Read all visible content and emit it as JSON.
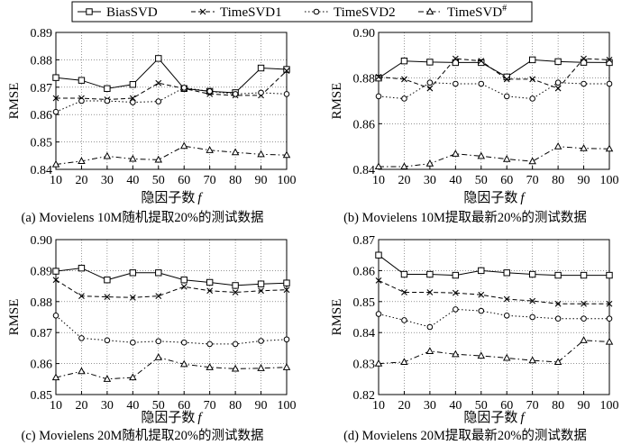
{
  "legend": {
    "entries": [
      {
        "series": "BiasSVD",
        "marker": "square",
        "dash": "solid"
      },
      {
        "series": "TimeSVD1",
        "marker": "x",
        "dash": "dash"
      },
      {
        "series": "TimeSVD2",
        "marker": "circle",
        "dash": "dot"
      },
      {
        "series": "TimeSVD#",
        "marker": "triangle",
        "dash": "dashdot"
      }
    ]
  },
  "chart_data": [
    {
      "type": "line",
      "caption": "(a) Movielens 10M随机提取20%的测试数据",
      "xlabel": "隐因子数f",
      "ylabel": "RMSE",
      "x": [
        10,
        20,
        30,
        40,
        50,
        60,
        70,
        80,
        90,
        100
      ],
      "xticks": [
        "10",
        "20",
        "30",
        "40",
        "50",
        "60",
        "70",
        "80",
        "90",
        "100"
      ],
      "ylim": [
        0.84,
        0.89
      ],
      "yticks": [
        0.84,
        0.85,
        0.86,
        0.87,
        0.88,
        0.89
      ],
      "ytick_labels": [
        "0.84",
        "0.85",
        "0.86",
        "0.87",
        "0.88",
        "0.89"
      ],
      "grid": true,
      "series": [
        {
          "name": "BiasSVD",
          "values": [
            0.8735,
            0.8725,
            0.8695,
            0.871,
            0.8805,
            0.8695,
            0.8685,
            0.868,
            0.877,
            0.8765
          ]
        },
        {
          "name": "TimeSVD1",
          "values": [
            0.866,
            0.866,
            0.8655,
            0.866,
            0.8715,
            0.8695,
            0.8675,
            0.867,
            0.867,
            0.876
          ]
        },
        {
          "name": "TimeSVD2",
          "values": [
            0.861,
            0.865,
            0.865,
            0.8645,
            0.8648,
            0.8698,
            0.8685,
            0.8675,
            0.868,
            0.8675
          ]
        },
        {
          "name": "TimeSVD#",
          "values": [
            0.8418,
            0.843,
            0.8448,
            0.8438,
            0.8435,
            0.8485,
            0.847,
            0.8462,
            0.8455,
            0.8452
          ]
        }
      ]
    },
    {
      "type": "line",
      "caption": "(b) Movielens 10M提取最新20%的测试数据",
      "xlabel": "隐因子数f",
      "ylabel": "RMSE",
      "x": [
        10,
        20,
        30,
        40,
        50,
        60,
        70,
        80,
        90,
        100
      ],
      "xticks": [
        "10",
        "20",
        "30",
        "40",
        "50",
        "60",
        "70",
        "80",
        "90",
        "100"
      ],
      "ylim": [
        0.84,
        0.9
      ],
      "yticks": [
        0.84,
        0.86,
        0.88,
        0.9
      ],
      "ytick_labels": [
        "0.84",
        "0.86",
        "0.88",
        "0.90"
      ],
      "grid": true,
      "series": [
        {
          "name": "BiasSVD",
          "values": [
            0.88,
            0.8875,
            0.887,
            0.8868,
            0.8868,
            0.8805,
            0.888,
            0.8872,
            0.8869,
            0.8868
          ]
        },
        {
          "name": "TimeSVD1",
          "values": [
            0.8805,
            0.8795,
            0.8755,
            0.8885,
            0.8875,
            0.8795,
            0.8795,
            0.8755,
            0.8885,
            0.888
          ]
        },
        {
          "name": "TimeSVD2",
          "values": [
            0.872,
            0.871,
            0.878,
            0.8775,
            0.8775,
            0.872,
            0.871,
            0.878,
            0.8775,
            0.8775
          ]
        },
        {
          "name": "TimeSVD#",
          "values": [
            0.8412,
            0.8412,
            0.8425,
            0.8468,
            0.8458,
            0.8445,
            0.8435,
            0.85,
            0.8492,
            0.849
          ]
        }
      ]
    },
    {
      "type": "line",
      "caption": "(c) Movielens 20M随机提取20%的测试数据",
      "xlabel": "隐因子数f",
      "ylabel": "RMSE",
      "x": [
        10,
        20,
        30,
        40,
        50,
        60,
        70,
        80,
        90,
        100
      ],
      "xticks": [
        "10",
        "20",
        "30",
        "40",
        "50",
        "60",
        "70",
        "80",
        "90",
        "100"
      ],
      "ylim": [
        0.85,
        0.9
      ],
      "yticks": [
        0.85,
        0.86,
        0.87,
        0.88,
        0.89,
        0.9
      ],
      "ytick_labels": [
        "0.85",
        "0.86",
        "0.87",
        "0.88",
        "0.89",
        "0.90"
      ],
      "grid": true,
      "series": [
        {
          "name": "BiasSVD",
          "values": [
            0.8898,
            0.8908,
            0.887,
            0.8893,
            0.8893,
            0.887,
            0.8862,
            0.8852,
            0.8857,
            0.886
          ]
        },
        {
          "name": "TimeSVD1",
          "values": [
            0.887,
            0.8818,
            0.8815,
            0.8813,
            0.8818,
            0.8848,
            0.8835,
            0.883,
            0.8835,
            0.8838
          ]
        },
        {
          "name": "TimeSVD2",
          "values": [
            0.8755,
            0.8682,
            0.8675,
            0.8668,
            0.8672,
            0.8668,
            0.8663,
            0.8663,
            0.8673,
            0.8678
          ]
        },
        {
          "name": "TimeSVD#",
          "values": [
            0.8555,
            0.8575,
            0.855,
            0.8555,
            0.862,
            0.8598,
            0.8588,
            0.8583,
            0.8585,
            0.8588
          ]
        }
      ]
    },
    {
      "type": "line",
      "caption": "(d) Movielens 20M提取最新20%的测试数据",
      "xlabel": "隐因子数f",
      "ylabel": "RMSE",
      "x": [
        10,
        20,
        30,
        40,
        50,
        60,
        70,
        80,
        90,
        100
      ],
      "xticks": [
        "10",
        "20",
        "30",
        "40",
        "50",
        "60",
        "70",
        "80",
        "90",
        "100"
      ],
      "ylim": [
        0.82,
        0.87
      ],
      "yticks": [
        0.82,
        0.83,
        0.84,
        0.85,
        0.86,
        0.87
      ],
      "ytick_labels": [
        "0.82",
        "0.83",
        "0.84",
        "0.85",
        "0.86",
        "0.87"
      ],
      "grid": true,
      "series": [
        {
          "name": "BiasSVD",
          "values": [
            0.865,
            0.8588,
            0.8588,
            0.8585,
            0.86,
            0.8593,
            0.8588,
            0.8585,
            0.8585,
            0.8585
          ]
        },
        {
          "name": "TimeSVD1",
          "values": [
            0.8568,
            0.853,
            0.853,
            0.8528,
            0.8522,
            0.8508,
            0.8502,
            0.8493,
            0.8493,
            0.8493
          ]
        },
        {
          "name": "TimeSVD2",
          "values": [
            0.846,
            0.844,
            0.8418,
            0.8475,
            0.847,
            0.8455,
            0.845,
            0.8445,
            0.8445,
            0.8445
          ]
        },
        {
          "name": "TimeSVD#",
          "values": [
            0.83,
            0.8305,
            0.834,
            0.833,
            0.8325,
            0.8318,
            0.831,
            0.8305,
            0.8375,
            0.837
          ]
        }
      ]
    }
  ]
}
